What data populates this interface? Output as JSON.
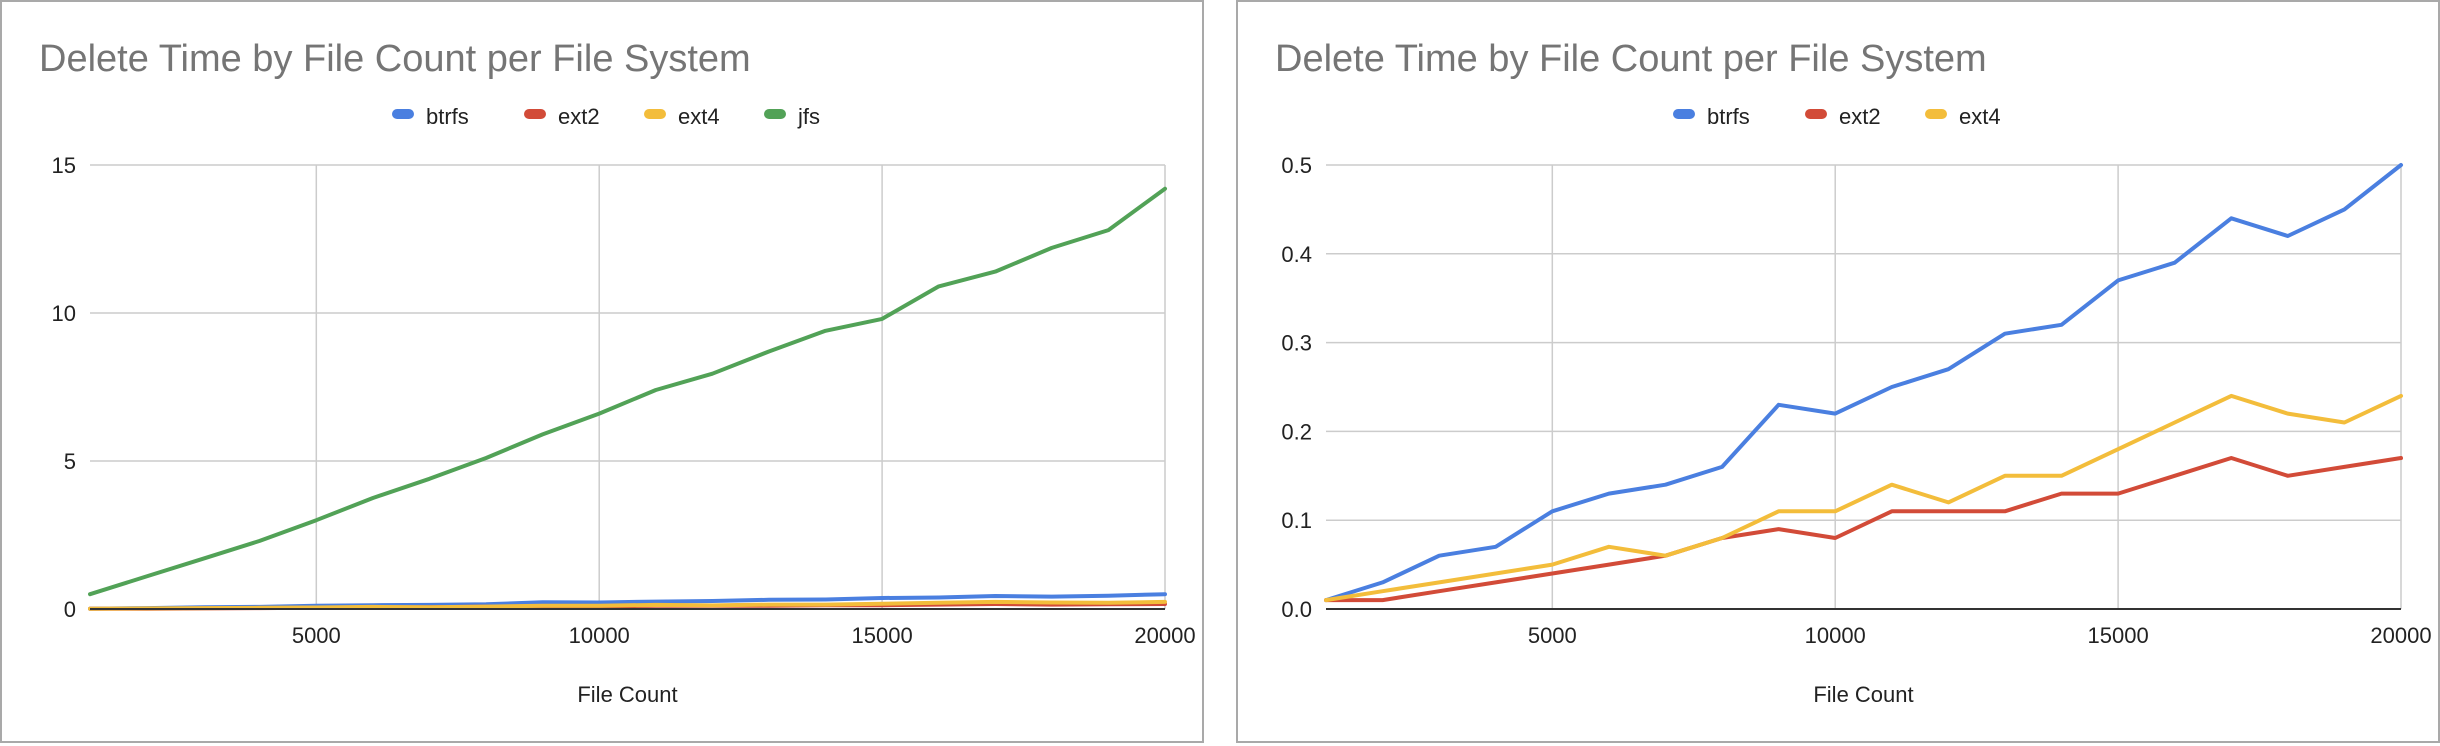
{
  "chart_data": [
    {
      "type": "line",
      "title": "Delete Time by File Count per File System",
      "xlabel": "File Count",
      "ylabel": "",
      "xlim": [
        1000,
        20000
      ],
      "ylim": [
        0,
        15
      ],
      "x_ticks": [
        5000,
        10000,
        15000,
        20000
      ],
      "y_ticks": [
        0,
        5,
        10,
        15
      ],
      "y_tick_labels": [
        "0",
        "5",
        "10",
        "15"
      ],
      "grid": true,
      "legend": "top",
      "x": [
        1000,
        2000,
        3000,
        4000,
        5000,
        6000,
        7000,
        8000,
        9000,
        10000,
        11000,
        12000,
        13000,
        14000,
        15000,
        16000,
        17000,
        18000,
        19000,
        20000
      ],
      "series": [
        {
          "name": "btrfs",
          "color": "#4a7fe0",
          "values": [
            0.01,
            0.03,
            0.06,
            0.07,
            0.11,
            0.13,
            0.14,
            0.16,
            0.23,
            0.22,
            0.25,
            0.27,
            0.31,
            0.32,
            0.37,
            0.39,
            0.44,
            0.42,
            0.45,
            0.5
          ]
        },
        {
          "name": "ext2",
          "color": "#d24b38",
          "values": [
            0.01,
            0.01,
            0.02,
            0.03,
            0.04,
            0.05,
            0.06,
            0.08,
            0.09,
            0.08,
            0.11,
            0.11,
            0.11,
            0.13,
            0.13,
            0.15,
            0.17,
            0.15,
            0.16,
            0.17
          ]
        },
        {
          "name": "ext4",
          "color": "#f3bd3b",
          "values": [
            0.01,
            0.02,
            0.03,
            0.04,
            0.05,
            0.07,
            0.06,
            0.08,
            0.11,
            0.11,
            0.14,
            0.12,
            0.15,
            0.15,
            0.18,
            0.21,
            0.24,
            0.22,
            0.21,
            0.24
          ]
        },
        {
          "name": "jfs",
          "color": "#52a257",
          "values": [
            0.5,
            1.1,
            1.7,
            2.3,
            3.0,
            3.75,
            4.4,
            5.1,
            5.9,
            6.6,
            7.4,
            7.95,
            8.7,
            9.4,
            9.8,
            10.9,
            11.4,
            12.2,
            12.8,
            14.2
          ]
        }
      ]
    },
    {
      "type": "line",
      "title": "Delete Time by File Count per File System",
      "xlabel": "File Count",
      "ylabel": "",
      "xlim": [
        1000,
        20000
      ],
      "ylim": [
        0,
        0.5
      ],
      "x_ticks": [
        5000,
        10000,
        15000,
        20000
      ],
      "y_ticks": [
        0,
        0.1,
        0.2,
        0.3,
        0.4,
        0.5
      ],
      "y_tick_labels": [
        "0.0",
        "0.1",
        "0.2",
        "0.3",
        "0.4",
        "0.5"
      ],
      "grid": true,
      "legend": "top",
      "x": [
        1000,
        2000,
        3000,
        4000,
        5000,
        6000,
        7000,
        8000,
        9000,
        10000,
        11000,
        12000,
        13000,
        14000,
        15000,
        16000,
        17000,
        18000,
        19000,
        20000
      ],
      "series": [
        {
          "name": "btrfs",
          "color": "#4a7fe0",
          "values": [
            0.01,
            0.03,
            0.06,
            0.07,
            0.11,
            0.13,
            0.14,
            0.16,
            0.23,
            0.22,
            0.25,
            0.27,
            0.31,
            0.32,
            0.37,
            0.39,
            0.44,
            0.42,
            0.45,
            0.5
          ]
        },
        {
          "name": "ext2",
          "color": "#d24b38",
          "values": [
            0.01,
            0.01,
            0.02,
            0.03,
            0.04,
            0.05,
            0.06,
            0.08,
            0.09,
            0.08,
            0.11,
            0.11,
            0.11,
            0.13,
            0.13,
            0.15,
            0.17,
            0.15,
            0.16,
            0.17
          ]
        },
        {
          "name": "ext4",
          "color": "#f3bd3b",
          "values": [
            0.01,
            0.02,
            0.03,
            0.04,
            0.05,
            0.07,
            0.06,
            0.08,
            0.11,
            0.11,
            0.14,
            0.12,
            0.15,
            0.15,
            0.18,
            0.21,
            0.24,
            0.22,
            0.21,
            0.24
          ]
        }
      ]
    }
  ]
}
